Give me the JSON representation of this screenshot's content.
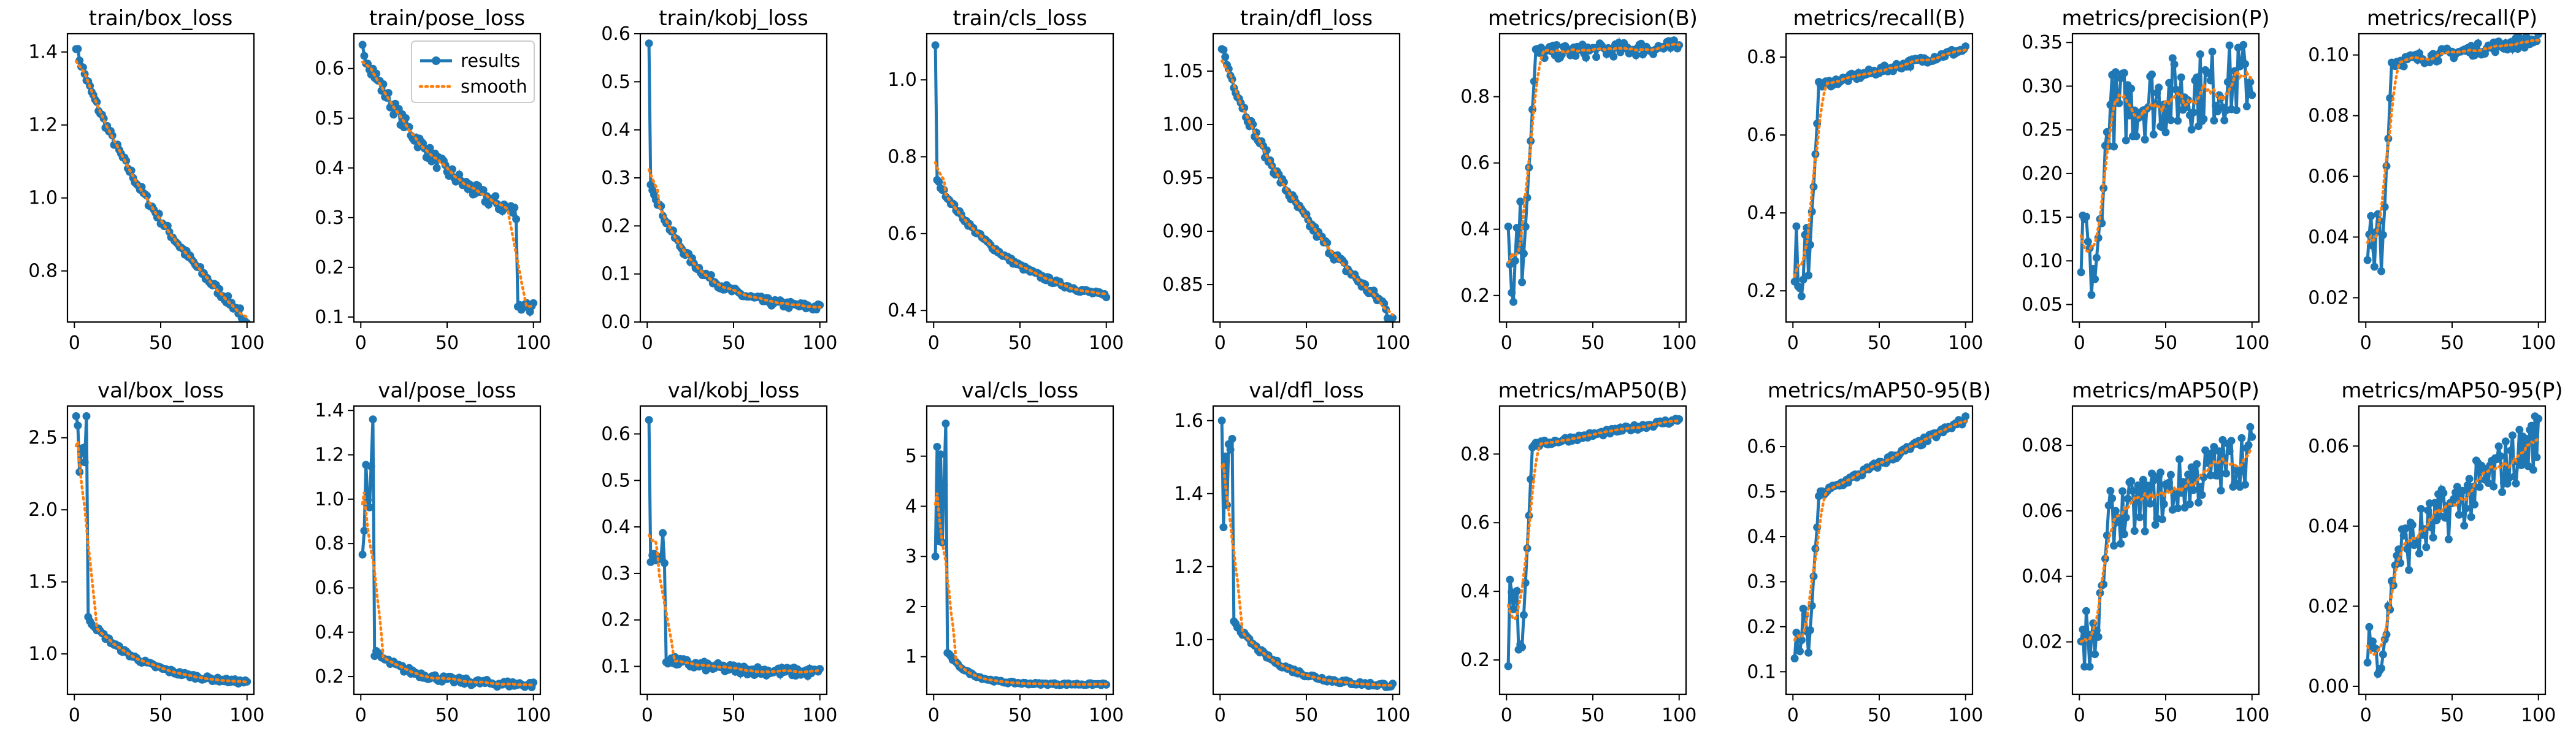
{
  "legend": {
    "results": "results",
    "smooth": "smooth"
  },
  "colors": {
    "results": "#1f77b4",
    "smooth": "#ff7f0e",
    "frame": "#000000"
  },
  "chart_data": [
    {
      "type": "line",
      "title": "train/box_loss",
      "xlim": [
        0,
        100
      ],
      "ylim": [
        0.66,
        1.45
      ],
      "xticks": [
        0,
        50,
        100
      ],
      "yticks": [
        0.8,
        1.0,
        1.2,
        1.4
      ],
      "ytick_labels": [
        "0.8",
        "1.0",
        "1.2",
        "1.4"
      ],
      "legend": false,
      "profile": "decay",
      "start": 1.42,
      "end": 0.67,
      "k": 1.2,
      "noise": 0.012
    },
    {
      "type": "line",
      "title": "train/pose_loss",
      "xlim": [
        0,
        100
      ],
      "ylim": [
        0.09,
        0.67
      ],
      "xticks": [
        0,
        50,
        100
      ],
      "yticks": [
        0.1,
        0.2,
        0.3,
        0.4,
        0.5,
        0.6
      ],
      "ytick_labels": [
        "0.1",
        "0.2",
        "0.3",
        "0.4",
        "0.5",
        "0.6"
      ],
      "legend": true,
      "legend_loc": "upper right",
      "profile": "pose",
      "start": 0.64,
      "end": 0.11,
      "k": 1.2,
      "noise": 0.015
    },
    {
      "type": "line",
      "title": "train/kobj_loss",
      "xlim": [
        0,
        100
      ],
      "ylim": [
        0.0,
        0.6
      ],
      "xticks": [
        0,
        50,
        100
      ],
      "yticks": [
        0.0,
        0.1,
        0.2,
        0.3,
        0.4,
        0.5,
        0.6
      ],
      "ytick_labels": [
        "0.0",
        "0.1",
        "0.2",
        "0.3",
        "0.4",
        "0.5",
        "0.6"
      ],
      "legend": false,
      "profile": "spike_decay",
      "start": 0.58,
      "end": 0.025,
      "k": 4,
      "noise": 0.008
    },
    {
      "type": "line",
      "title": "train/cls_loss",
      "xlim": [
        0,
        100
      ],
      "ylim": [
        0.37,
        1.12
      ],
      "xticks": [
        0,
        50,
        100
      ],
      "yticks": [
        0.4,
        0.6,
        0.8,
        1.0
      ],
      "ytick_labels": [
        "0.4",
        "0.6",
        "0.8",
        "1.0"
      ],
      "legend": false,
      "profile": "spike_decay",
      "start": 1.09,
      "end": 0.4,
      "k": 2.2,
      "noise": 0.006
    },
    {
      "type": "line",
      "title": "train/dfl_loss",
      "xlim": [
        0,
        100
      ],
      "ylim": [
        0.815,
        1.085
      ],
      "xticks": [
        0,
        50,
        100
      ],
      "yticks": [
        0.85,
        0.9,
        0.95,
        1.0,
        1.05
      ],
      "ytick_labels": [
        "0.85",
        "0.90",
        "0.95",
        "1.00",
        "1.05"
      ],
      "legend": false,
      "profile": "decay",
      "start": 1.075,
      "end": 0.825,
      "k": 1.5,
      "noise": 0.005
    },
    {
      "type": "line",
      "title": "metrics/precision(B)",
      "xlim": [
        0,
        100
      ],
      "ylim": [
        0.12,
        0.99
      ],
      "xticks": [
        0,
        50,
        100
      ],
      "yticks": [
        0.2,
        0.4,
        0.6,
        0.8
      ],
      "ytick_labels": [
        "0.2",
        "0.4",
        "0.6",
        "0.8"
      ],
      "legend": false,
      "profile": "rise_noisy",
      "start": 0.16,
      "plateau": 0.93,
      "end": 0.95,
      "k": 8,
      "noise": 0.012
    },
    {
      "type": "line",
      "title": "metrics/recall(B)",
      "xlim": [
        0,
        100
      ],
      "ylim": [
        0.12,
        0.86
      ],
      "xticks": [
        0,
        50,
        100
      ],
      "yticks": [
        0.2,
        0.4,
        0.6,
        0.8
      ],
      "ytick_labels": [
        "0.2",
        "0.4",
        "0.6",
        "0.8"
      ],
      "legend": false,
      "profile": "rise",
      "start": 0.15,
      "plateau": 0.72,
      "end": 0.82,
      "k": 8,
      "noise": 0.01
    },
    {
      "type": "line",
      "title": "metrics/precision(P)",
      "xlim": [
        0,
        100
      ],
      "ylim": [
        0.03,
        0.36
      ],
      "xticks": [
        0,
        50,
        100
      ],
      "yticks": [
        0.05,
        0.1,
        0.15,
        0.2,
        0.25,
        0.3,
        0.35
      ],
      "ytick_labels": [
        "0.05",
        "0.10",
        "0.15",
        "0.20",
        "0.25",
        "0.30",
        "0.35"
      ],
      "legend": false,
      "profile": "rise_noisy",
      "start": 0.04,
      "plateau": 0.27,
      "end": 0.31,
      "k": 5,
      "noise": 0.025
    },
    {
      "type": "line",
      "title": "metrics/recall(P)",
      "xlim": [
        0,
        100
      ],
      "ylim": [
        0.012,
        0.107
      ],
      "xticks": [
        0,
        50,
        100
      ],
      "yticks": [
        0.02,
        0.04,
        0.06,
        0.08,
        0.1
      ],
      "ytick_labels": [
        "0.02",
        "0.04",
        "0.06",
        "0.08",
        "0.10"
      ],
      "legend": false,
      "profile": "rise",
      "start": 0.018,
      "plateau": 0.097,
      "end": 0.105,
      "k": 8,
      "noise": 0.002
    },
    {
      "type": "line",
      "title": "val/box_loss",
      "xlim": [
        0,
        100
      ],
      "ylim": [
        0.72,
        2.72
      ],
      "xticks": [
        0,
        50,
        100
      ],
      "yticks": [
        1.0,
        1.5,
        2.0,
        2.5
      ],
      "ytick_labels": [
        "1.0",
        "1.5",
        "2.0",
        "2.5"
      ],
      "legend": false,
      "profile": "val_spike",
      "start": 2.65,
      "end": 0.78,
      "k": 1.6,
      "noise": 0.015
    },
    {
      "type": "line",
      "title": "val/pose_loss",
      "xlim": [
        0,
        100
      ],
      "ylim": [
        0.12,
        1.42
      ],
      "xticks": [
        0,
        50,
        100
      ],
      "yticks": [
        0.2,
        0.4,
        0.6,
        0.8,
        1.0,
        1.2,
        1.4
      ],
      "ytick_labels": [
        "0.2",
        "0.4",
        "0.6",
        "0.8",
        "1.0",
        "1.2",
        "1.4"
      ],
      "legend": false,
      "profile": "val_spike",
      "start": 0.75,
      "peak": 1.36,
      "end": 0.16,
      "k": 2,
      "noise": 0.015
    },
    {
      "type": "line",
      "title": "val/kobj_loss",
      "xlim": [
        0,
        100
      ],
      "ylim": [
        0.04,
        0.66
      ],
      "xticks": [
        0,
        50,
        100
      ],
      "yticks": [
        0.1,
        0.2,
        0.3,
        0.4,
        0.5,
        0.6
      ],
      "ytick_labels": [
        "0.1",
        "0.2",
        "0.3",
        "0.4",
        "0.5",
        "0.6"
      ],
      "legend": false,
      "profile": "val_kobj",
      "start": 0.63,
      "end": 0.085,
      "k": 3,
      "noise": 0.01
    },
    {
      "type": "line",
      "title": "val/cls_loss",
      "xlim": [
        0,
        100
      ],
      "ylim": [
        0.25,
        6.0
      ],
      "xticks": [
        0,
        50,
        100
      ],
      "yticks": [
        1,
        2,
        3,
        4,
        5
      ],
      "ytick_labels": [
        "1",
        "2",
        "3",
        "4",
        "5"
      ],
      "legend": false,
      "profile": "val_spike",
      "start": 3.0,
      "peak": 5.65,
      "end": 0.45,
      "k": 4,
      "noise": 0.02
    },
    {
      "type": "line",
      "title": "val/dfl_loss",
      "xlim": [
        0,
        100
      ],
      "ylim": [
        0.85,
        1.64
      ],
      "xticks": [
        0,
        50,
        100
      ],
      "yticks": [
        1.0,
        1.2,
        1.4,
        1.6
      ],
      "ytick_labels": [
        "1.0",
        "1.2",
        "1.4",
        "1.6"
      ],
      "legend": false,
      "profile": "val_spike",
      "start": 1.6,
      "peak": 1.55,
      "end": 0.87,
      "k": 2,
      "noise": 0.006
    },
    {
      "type": "line",
      "title": "metrics/mAP50(B)",
      "xlim": [
        0,
        100
      ],
      "ylim": [
        0.1,
        0.94
      ],
      "xticks": [
        0,
        50,
        100
      ],
      "yticks": [
        0.2,
        0.4,
        0.6,
        0.8
      ],
      "ytick_labels": [
        "0.2",
        "0.4",
        "0.6",
        "0.8"
      ],
      "legend": false,
      "profile": "rise",
      "start": 0.14,
      "plateau": 0.82,
      "end": 0.9,
      "k": 8,
      "noise": 0.008
    },
    {
      "type": "line",
      "title": "metrics/mAP50-95(B)",
      "xlim": [
        0,
        100
      ],
      "ylim": [
        0.05,
        0.69
      ],
      "xticks": [
        0,
        50,
        100
      ],
      "yticks": [
        0.1,
        0.2,
        0.3,
        0.4,
        0.5,
        0.6
      ],
      "ytick_labels": [
        "0.1",
        "0.2",
        "0.3",
        "0.4",
        "0.5",
        "0.6"
      ],
      "legend": false,
      "profile": "rise",
      "start": 0.08,
      "plateau": 0.48,
      "end": 0.66,
      "k": 7,
      "noise": 0.008
    },
    {
      "type": "line",
      "title": "metrics/mAP50(P)",
      "xlim": [
        0,
        100
      ],
      "ylim": [
        0.004,
        0.092
      ],
      "xticks": [
        0,
        50,
        100
      ],
      "yticks": [
        0.02,
        0.04,
        0.06,
        0.08
      ],
      "ytick_labels": [
        "0.02",
        "0.04",
        "0.06",
        "0.08"
      ],
      "legend": false,
      "profile": "rise_noisy",
      "start": 0.01,
      "plateau": 0.055,
      "end": 0.078,
      "k": 4,
      "noise": 0.005
    },
    {
      "type": "line",
      "title": "metrics/mAP50-95(P)",
      "xlim": [
        0,
        100
      ],
      "ylim": [
        -0.002,
        0.07
      ],
      "xticks": [
        0,
        50,
        100
      ],
      "yticks": [
        0.0,
        0.02,
        0.04,
        0.06
      ],
      "ytick_labels": [
        "0.00",
        "0.02",
        "0.04",
        "0.06"
      ],
      "legend": false,
      "profile": "rise_noisy",
      "start": 0.003,
      "plateau": 0.03,
      "end": 0.062,
      "k": 3,
      "noise": 0.004
    }
  ]
}
